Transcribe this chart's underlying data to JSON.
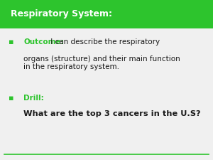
{
  "title": "Respiratory System:",
  "title_bg_color": "#2dc42d",
  "title_text_color": "#ffffff",
  "body_bg_color": "#f0f0f0",
  "bullet_color": "#2dc42d",
  "bullet1_label": "Outcome:",
  "bullet1_body": " I can describe the respiratory\norgans (structure) and their main function\nin the respiratory system.",
  "bullet2_label": "Drill:",
  "bullet2_body": "What are the top 3 cancers in the U.S?",
  "label_color": "#2dc42d",
  "body_text_color": "#1a1a1a",
  "bottom_line_color": "#2dc42d",
  "title_fontsize": 9.0,
  "body_fontsize": 7.5,
  "drill_sub_fontsize": 8.2
}
